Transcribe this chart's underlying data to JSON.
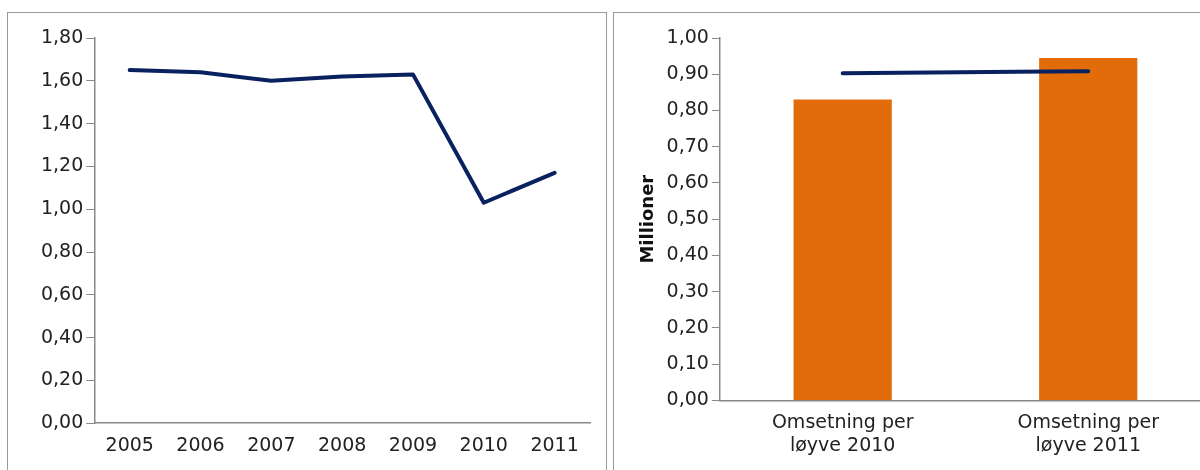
{
  "chart_data": [
    {
      "type": "line",
      "categories": [
        "2005",
        "2006",
        "2007",
        "2008",
        "2009",
        "2010",
        "2011"
      ],
      "values": [
        1.65,
        1.64,
        1.6,
        1.62,
        1.63,
        1.03,
        1.17
      ],
      "color": "#0a2160",
      "marker": "none",
      "ylim": [
        0,
        1.8
      ],
      "yticks": [
        {
          "value": 0,
          "label": "0,00"
        },
        {
          "value": 0.2,
          "label": "0,20"
        },
        {
          "value": 0.4,
          "label": "0,40"
        },
        {
          "value": 0.6,
          "label": "0,60"
        },
        {
          "value": 0.8,
          "label": "0,80"
        },
        {
          "value": 1.0,
          "label": "1,00"
        },
        {
          "value": 1.2,
          "label": "1,20"
        },
        {
          "value": 1.4,
          "label": "1,40"
        },
        {
          "value": 1.6,
          "label": "1,60"
        },
        {
          "value": 1.8,
          "label": "1,80"
        }
      ],
      "grid": false,
      "legend": false
    },
    {
      "type": "bar",
      "categories": [
        "Omsetning per løyve 2010",
        "Omsetning per løyve 2011"
      ],
      "ylabel": "Millioner",
      "series": [
        {
          "type": "bar",
          "color": "#e36c0a",
          "values": [
            0.83,
            0.945
          ]
        },
        {
          "type": "line",
          "color": "#0a2160",
          "values": [
            0.903,
            0.908
          ]
        }
      ],
      "ylim": [
        0,
        1.0
      ],
      "yticks": [
        {
          "value": 0,
          "label": "0,00"
        },
        {
          "value": 0.1,
          "label": "0,10"
        },
        {
          "value": 0.2,
          "label": "0,20"
        },
        {
          "value": 0.3,
          "label": "0,30"
        },
        {
          "value": 0.4,
          "label": "0,40"
        },
        {
          "value": 0.5,
          "label": "0,50"
        },
        {
          "value": 0.6,
          "label": "0,60"
        },
        {
          "value": 0.7,
          "label": "0,70"
        },
        {
          "value": 0.8,
          "label": "0,80"
        },
        {
          "value": 0.9,
          "label": "0,90"
        },
        {
          "value": 1.0,
          "label": "1,00"
        }
      ],
      "grid": false,
      "legend": false
    }
  ]
}
